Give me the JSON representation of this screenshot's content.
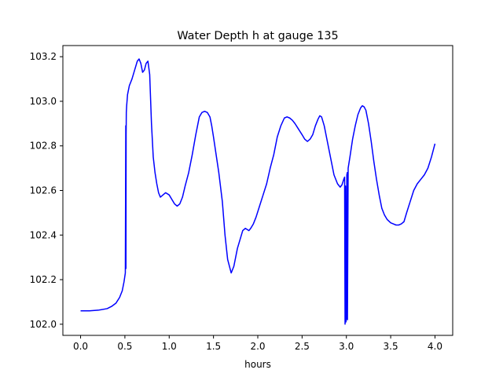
{
  "chart_data": {
    "type": "line",
    "title": "Water Depth h at gauge 135",
    "xlabel": "hours",
    "ylabel": "",
    "xlim": [
      -0.2,
      4.2
    ],
    "ylim": [
      101.95,
      103.25
    ],
    "xticks": [
      0.0,
      0.5,
      1.0,
      1.5,
      2.0,
      2.5,
      3.0,
      3.5,
      4.0
    ],
    "xtick_labels": [
      "0.0",
      "0.5",
      "1.0",
      "1.5",
      "2.0",
      "2.5",
      "3.0",
      "3.5",
      "4.0"
    ],
    "yticks": [
      102.0,
      102.2,
      102.4,
      102.6,
      102.8,
      103.0,
      103.2
    ],
    "ytick_labels": [
      "102.0",
      "102.2",
      "102.4",
      "102.6",
      "102.8",
      "103.0",
      "103.2"
    ],
    "grid": false,
    "legend": false,
    "series": [
      {
        "color": "#0000ff",
        "x": [
          0.0,
          0.1,
          0.2,
          0.3,
          0.35,
          0.4,
          0.44,
          0.47,
          0.49,
          0.505,
          0.51,
          0.512,
          0.514,
          0.516,
          0.52,
          0.53,
          0.55,
          0.58,
          0.61,
          0.64,
          0.66,
          0.68,
          0.7,
          0.72,
          0.74,
          0.76,
          0.78,
          0.8,
          0.82,
          0.84,
          0.86,
          0.88,
          0.9,
          0.93,
          0.96,
          1.0,
          1.03,
          1.06,
          1.09,
          1.12,
          1.15,
          1.18,
          1.22,
          1.26,
          1.3,
          1.34,
          1.37,
          1.4,
          1.43,
          1.46,
          1.48,
          1.5,
          1.53,
          1.56,
          1.6,
          1.63,
          1.66,
          1.7,
          1.73,
          1.75,
          1.77,
          1.8,
          1.83,
          1.86,
          1.9,
          1.92,
          1.95,
          1.98,
          2.02,
          2.06,
          2.1,
          2.14,
          2.18,
          2.22,
          2.26,
          2.3,
          2.33,
          2.36,
          2.39,
          2.42,
          2.46,
          2.5,
          2.53,
          2.56,
          2.59,
          2.62,
          2.65,
          2.68,
          2.7,
          2.72,
          2.75,
          2.78,
          2.82,
          2.86,
          2.9,
          2.93,
          2.95,
          2.97,
          2.98,
          2.985,
          2.99,
          2.995,
          3.0,
          3.005,
          3.01,
          3.012,
          3.02,
          3.04,
          3.07,
          3.1,
          3.13,
          3.16,
          3.18,
          3.2,
          3.22,
          3.25,
          3.28,
          3.31,
          3.34,
          3.37,
          3.4,
          3.43,
          3.46,
          3.5,
          3.53,
          3.56,
          3.59,
          3.62,
          3.65,
          3.68,
          3.72,
          3.76,
          3.8,
          3.84,
          3.88,
          3.92,
          3.96,
          4.0
        ],
        "y": [
          102.06,
          102.06,
          102.063,
          102.07,
          102.08,
          102.095,
          102.12,
          102.15,
          102.19,
          102.23,
          102.89,
          102.25,
          102.85,
          102.95,
          102.98,
          103.03,
          103.07,
          103.1,
          103.14,
          103.18,
          103.19,
          103.17,
          103.13,
          103.14,
          103.17,
          103.18,
          103.12,
          102.9,
          102.75,
          102.68,
          102.63,
          102.59,
          102.57,
          102.58,
          102.59,
          102.58,
          102.56,
          102.54,
          102.53,
          102.54,
          102.57,
          102.62,
          102.68,
          102.76,
          102.85,
          102.93,
          102.95,
          102.955,
          102.95,
          102.93,
          102.89,
          102.84,
          102.76,
          102.68,
          102.55,
          102.4,
          102.29,
          102.23,
          102.26,
          102.3,
          102.34,
          102.38,
          102.42,
          102.43,
          102.42,
          102.43,
          102.45,
          102.48,
          102.53,
          102.58,
          102.63,
          102.7,
          102.76,
          102.84,
          102.89,
          102.925,
          102.93,
          102.925,
          102.915,
          102.9,
          102.875,
          102.85,
          102.83,
          102.82,
          102.83,
          102.85,
          102.89,
          102.92,
          102.935,
          102.93,
          102.89,
          102.83,
          102.75,
          102.67,
          102.63,
          102.615,
          102.625,
          102.65,
          102.66,
          102.0,
          102.62,
          102.01,
          102.03,
          102.67,
          102.68,
          102.02,
          102.7,
          102.75,
          102.83,
          102.89,
          102.94,
          102.97,
          102.98,
          102.975,
          102.96,
          102.9,
          102.82,
          102.73,
          102.65,
          102.58,
          102.52,
          102.49,
          102.47,
          102.455,
          102.45,
          102.445,
          102.445,
          102.45,
          102.46,
          102.5,
          102.55,
          102.6,
          102.63,
          102.65,
          102.67,
          102.7,
          102.75,
          102.81
        ]
      }
    ]
  }
}
